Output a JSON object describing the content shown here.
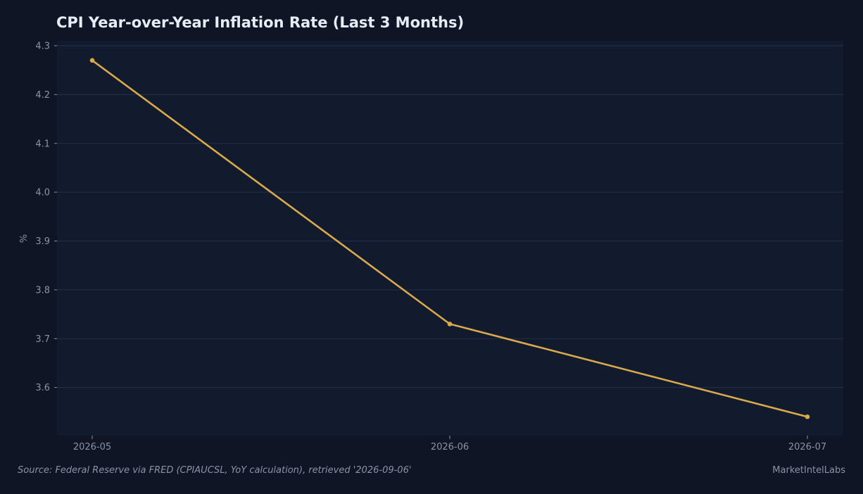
{
  "chart_data": {
    "type": "line",
    "title": "CPI Year-over-Year Inflation Rate (Last 3 Months)",
    "xlabel": "",
    "ylabel": "%",
    "categories": [
      "2026-05",
      "2026-06",
      "2026-07"
    ],
    "series": [
      {
        "values": [
          4.27,
          3.73,
          3.54
        ]
      }
    ],
    "yticks": [
      "3.6",
      "3.7",
      "3.8",
      "3.9",
      "4.0",
      "4.1",
      "4.2",
      "4.3"
    ],
    "ylim": [
      3.5,
      4.3
    ],
    "grid": true,
    "legend": "none",
    "colors": {
      "background": "#0f1525",
      "plot_background": "#111b2d",
      "gridline": "#24304a",
      "line": "#d9a94c",
      "tick_text": "#8a93a6"
    }
  },
  "footer": {
    "source": "Source: Federal Reserve via FRED (CPIAUCSL, YoY calculation), retrieved '2026-09-06'",
    "brand": "MarketIntelLabs"
  }
}
